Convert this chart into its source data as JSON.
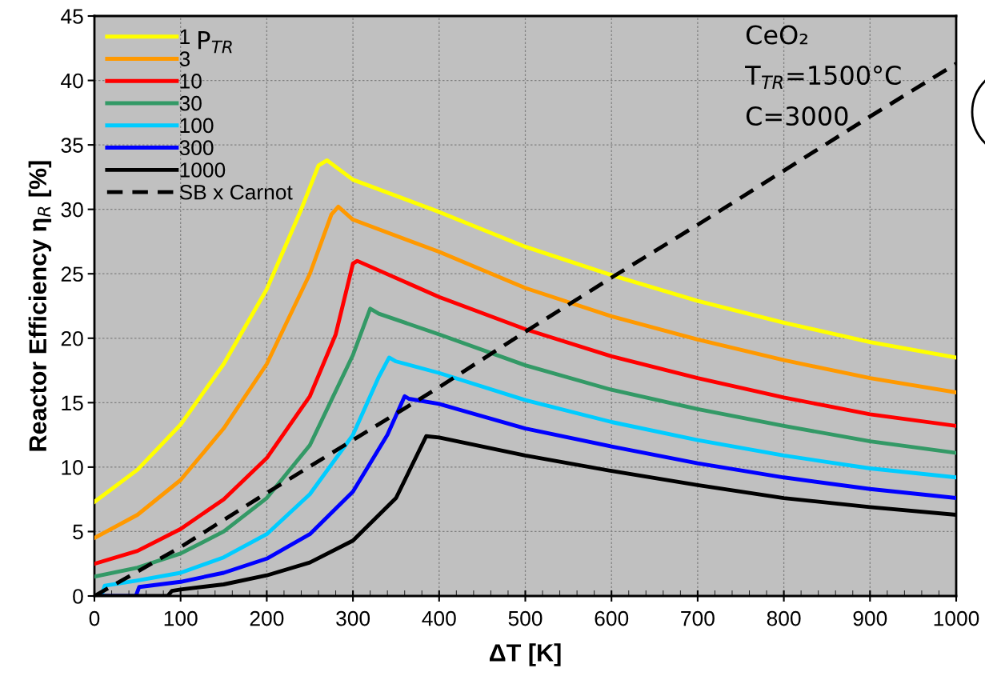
{
  "chart_data": {
    "type": "line",
    "xlabel": "ΔT [K]",
    "ylabel": "Reactor Efficiency η$_{R}$ [%]",
    "legend_title": "P$_{TR}$",
    "annotations": [
      "CeO₂",
      "T$_{TR}$=1500°C",
      "C=3000"
    ],
    "xlim": [
      0,
      1000
    ],
    "xticks": [
      0,
      100,
      200,
      300,
      400,
      500,
      600,
      700,
      800,
      900,
      1000
    ],
    "ylim": [
      0,
      45
    ],
    "yticks": [
      0,
      5,
      10,
      15,
      20,
      25,
      30,
      35,
      40,
      45
    ],
    "grid": true,
    "legend": "top left",
    "marker": "none",
    "series": [
      {
        "name": "1",
        "color": "#ffff00",
        "x": [
          0,
          50,
          100,
          150,
          200,
          240,
          260,
          270,
          300,
          400,
          500,
          600,
          700,
          800,
          900,
          1000
        ],
        "values": [
          7.3,
          9.8,
          13.3,
          18,
          23.8,
          30,
          33.4,
          33.8,
          32.3,
          29.8,
          27.1,
          24.9,
          22.9,
          21.2,
          19.7,
          18.5
        ]
      },
      {
        "name": "3",
        "color": "#ff9900",
        "x": [
          0,
          50,
          100,
          150,
          200,
          250,
          275,
          283,
          300,
          400,
          500,
          600,
          700,
          800,
          900,
          1000
        ],
        "values": [
          4.5,
          6.3,
          9,
          13,
          18,
          25,
          29.6,
          30.2,
          29.2,
          26.7,
          23.9,
          21.7,
          19.9,
          18.3,
          16.9,
          15.8
        ]
      },
      {
        "name": "10",
        "color": "#ff0000",
        "x": [
          0,
          50,
          100,
          150,
          200,
          250,
          280,
          300,
          305,
          400,
          500,
          600,
          700,
          800,
          900,
          1000
        ],
        "values": [
          2.5,
          3.5,
          5.2,
          7.5,
          10.7,
          15.5,
          20.3,
          25.8,
          26.0,
          23.2,
          20.7,
          18.6,
          16.9,
          15.4,
          14.1,
          13.2
        ]
      },
      {
        "name": "30",
        "color": "#339966",
        "x": [
          0,
          50,
          100,
          150,
          200,
          250,
          300,
          320,
          330,
          400,
          500,
          600,
          700,
          800,
          900,
          1000
        ],
        "values": [
          1.5,
          2.2,
          3.3,
          5.0,
          7.6,
          11.7,
          18.7,
          22.3,
          21.9,
          20.3,
          17.9,
          16.0,
          14.5,
          13.2,
          12.0,
          11.1
        ]
      },
      {
        "name": "100",
        "color": "#00ccff",
        "x": [
          0,
          8,
          12,
          50,
          100,
          150,
          200,
          250,
          300,
          330,
          342,
          350,
          400,
          500,
          600,
          700,
          800,
          900,
          1000
        ],
        "values": [
          0,
          0,
          0.8,
          1.2,
          1.8,
          3.0,
          4.8,
          7.9,
          12.5,
          17,
          18.5,
          18.2,
          17.3,
          15.2,
          13.5,
          12.1,
          10.9,
          9.9,
          9.2
        ]
      },
      {
        "name": "300",
        "color": "#0000ff",
        "x": [
          0,
          48,
          52,
          100,
          150,
          200,
          250,
          300,
          340,
          360,
          365,
          400,
          500,
          600,
          700,
          800,
          900,
          1000
        ],
        "values": [
          0,
          0,
          0.7,
          1.1,
          1.8,
          2.9,
          4.8,
          8.1,
          12.5,
          15.5,
          15.3,
          14.9,
          13.0,
          11.6,
          10.3,
          9.2,
          8.3,
          7.6
        ]
      },
      {
        "name": "1000",
        "color": "#000000",
        "x": [
          0,
          85,
          90,
          100,
          150,
          200,
          250,
          300,
          350,
          385,
          400,
          500,
          600,
          700,
          800,
          900,
          1000
        ],
        "values": [
          0,
          0,
          0.4,
          0.5,
          0.9,
          1.6,
          2.6,
          4.3,
          7.6,
          12.4,
          12.3,
          10.9,
          9.7,
          8.6,
          7.6,
          6.9,
          6.3
        ]
      },
      {
        "name": "SB x Carnot",
        "color": "#000000",
        "line_style": "dashed",
        "x": [
          0,
          100,
          200,
          300,
          400,
          500,
          600,
          700,
          800,
          900,
          1000
        ],
        "values": [
          0,
          3.8,
          8.0,
          12.1,
          16.2,
          20.5,
          24.7,
          28.8,
          33,
          37.2,
          41.3
        ]
      }
    ]
  }
}
